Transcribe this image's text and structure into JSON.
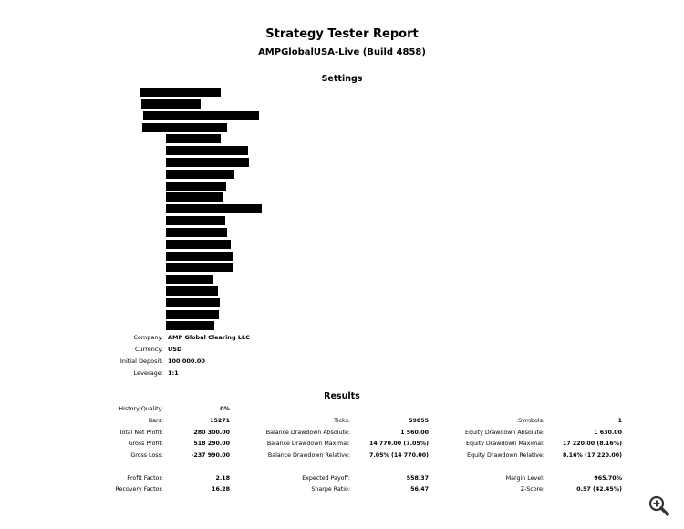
{
  "report": {
    "title": "Strategy Tester Report",
    "server": "AMPGlobalUSA-Live (Build 4858)"
  },
  "settings": {
    "heading": "Settings",
    "redacted_rows": 18,
    "items": [
      {
        "label": "Company:",
        "value": "AMP Global Clearing LLC"
      },
      {
        "label": "Currency:",
        "value": "USD"
      },
      {
        "label": "Initial Deposit:",
        "value": "100 000.00"
      },
      {
        "label": "Leverage:",
        "value": "1:1"
      }
    ]
  },
  "results": {
    "heading": "Results",
    "history_quality": {
      "label": "History Quality:",
      "value": "0%"
    },
    "rows": [
      [
        {
          "label": "Bars:",
          "value": "15271"
        },
        {
          "label": "Ticks:",
          "value": "59855"
        },
        {
          "label": "Symbols:",
          "value": "1"
        }
      ],
      [
        {
          "label": "Total Net Profit:",
          "value": "280 300.00"
        },
        {
          "label": "Balance Drawdown Absolute:",
          "value": "1 560.00"
        },
        {
          "label": "Equity Drawdown Absolute:",
          "value": "1 630.00"
        }
      ],
      [
        {
          "label": "Gross Profit:",
          "value": "518 290.00"
        },
        {
          "label": "Balance Drawdown Maximal:",
          "value": "14 770.00 (7.05%)"
        },
        {
          "label": "Equity Drawdown Maximal:",
          "value": "17 220.00 (8.16%)"
        }
      ],
      [
        {
          "label": "Gross Loss:",
          "value": "-237 990.00"
        },
        {
          "label": "Balance Drawdown Relative:",
          "value": "7.05% (14 770.00)"
        },
        {
          "label": "Equity Drawdown Relative:",
          "value": "8.16% (17 220.00)"
        }
      ],
      [
        {
          "label": "Profit Factor:",
          "value": "2.18"
        },
        {
          "label": "Expected Payoff:",
          "value": "558.37"
        },
        {
          "label": "Margin Level:",
          "value": "965.70%"
        }
      ],
      [
        {
          "label": "Recovery Factor:",
          "value": "16.28"
        },
        {
          "label": "Sharpe Ratio:",
          "value": "56.47"
        },
        {
          "label": "Z-Score:",
          "value": "0.57 (42.45%)"
        }
      ]
    ]
  },
  "icons": {
    "zoom": "zoom-in-icon"
  }
}
